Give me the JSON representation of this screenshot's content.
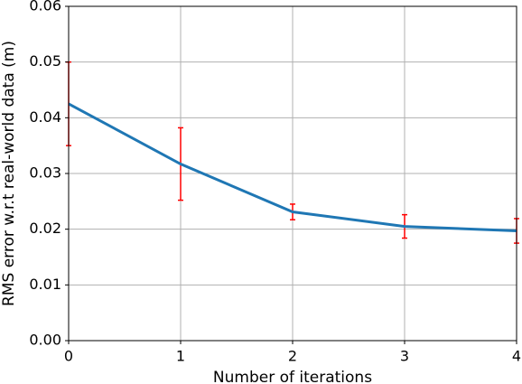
{
  "chart_data": {
    "type": "errorbar-line",
    "x_label": "Number of iterations",
    "y_label": "RMS error w.r.t real-world data (m)",
    "x": [
      0,
      1,
      2,
      3,
      4
    ],
    "values": [
      0.0425,
      0.0317,
      0.0231,
      0.0205,
      0.0197
    ],
    "errors": [
      0.0075,
      0.0065,
      0.0014,
      0.0021,
      0.0022
    ],
    "color": "#1f77b4",
    "error_color": "#ff0000",
    "xlim": [
      0,
      4
    ],
    "xticks": [
      0,
      1,
      2,
      3,
      4
    ],
    "ylim": [
      0,
      0.06
    ],
    "yticks": [
      {
        "value": 0,
        "label": "0.00"
      },
      {
        "value": 0.01,
        "label": "0.01"
      },
      {
        "value": 0.02,
        "label": "0.02"
      },
      {
        "value": 0.03,
        "label": "0.03"
      },
      {
        "value": 0.04,
        "label": "0.04"
      },
      {
        "value": 0.05,
        "label": "0.05"
      },
      {
        "value": 0.06,
        "label": "0.06"
      }
    ],
    "grid": true
  }
}
